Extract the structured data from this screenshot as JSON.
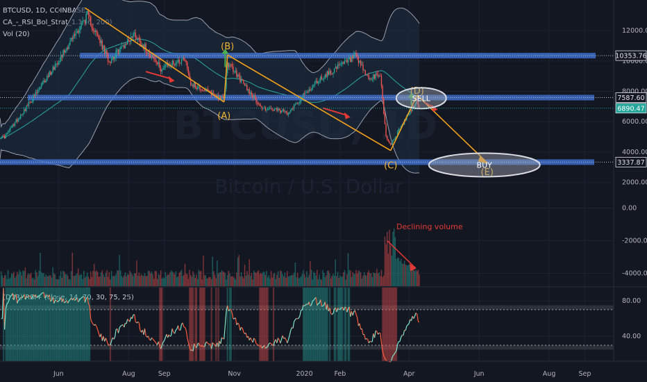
{
  "header": {
    "symbol_line": "BTCUSD, 1D, COINBASE",
    "indicator_line": "CA_-_RSI_Bol_Strat_1.1 (6, 200)",
    "volume_line": "Vol (20)",
    "rsi_line": "(D7R) RSI+ (close, 14, 70, 30, 75, 25)"
  },
  "watermark": {
    "symbol": "BTCUSD, 1D",
    "description": "Bitcoin / U.S. Dollar"
  },
  "colors": {
    "background": "#131722",
    "grid": "#1e2230",
    "up_candle": "#26a69a",
    "down_candle": "#ef5350",
    "level_band": "#3e6cc9",
    "trend_line": "#f7a21b",
    "wave_label": "#f7b733",
    "arrow_red": "#e53935",
    "arrow_green": "#4caf50",
    "rsi_up": "#7fe8cf",
    "rsi_down": "#ff5b3a",
    "bollinger": "#9aa0b0"
  },
  "chart_data": {
    "type": "candlestick",
    "price_axis": {
      "ticks": [
        "12000.00",
        "10000.00",
        "8000.00",
        "6000.00",
        "4000.00",
        "2000.00"
      ],
      "tick_values": [
        12000,
        10000,
        8000,
        6000,
        4000,
        2000
      ],
      "range": [
        -100,
        13400
      ]
    },
    "volume_axis": {
      "ticks": [
        "0.00",
        "-2000.00",
        "-4000.00"
      ],
      "tick_values": [
        0,
        -2000,
        -4000
      ]
    },
    "rsi_axis": {
      "ticks": [
        "80.00",
        "40.00"
      ],
      "tick_values": [
        80,
        40
      ],
      "range": [
        12,
        95
      ],
      "overbought": 70,
      "oversold": 30,
      "upper_band": 75,
      "lower_band": 25
    },
    "time_axis": [
      "Jun",
      "Aug",
      "Sep",
      "Nov",
      "2020",
      "Feb",
      "Apr",
      "Jun",
      "Aug",
      "Sep"
    ],
    "price_key_points": [
      {
        "date": "2019-04-15",
        "price": 5000
      },
      {
        "date": "2019-05-14",
        "price": 8000
      },
      {
        "date": "2019-06-26",
        "price": 13000
      },
      {
        "date": "2019-07-15",
        "price": 10000
      },
      {
        "date": "2019-08-06",
        "price": 11800
      },
      {
        "date": "2019-08-29",
        "price": 9500
      },
      {
        "date": "2019-09-19",
        "price": 10200
      },
      {
        "date": "2019-09-24",
        "price": 8500
      },
      {
        "date": "2019-10-23",
        "price": 7500
      },
      {
        "date": "2019-10-26",
        "price": 9900
      },
      {
        "date": "2019-11-25",
        "price": 6900
      },
      {
        "date": "2019-12-17",
        "price": 6600
      },
      {
        "date": "2020-01-14",
        "price": 8800
      },
      {
        "date": "2020-02-14",
        "price": 10300
      },
      {
        "date": "2020-02-26",
        "price": 8800
      },
      {
        "date": "2020-03-07",
        "price": 9100
      },
      {
        "date": "2020-03-12",
        "price": 5000
      },
      {
        "date": "2020-03-16",
        "price": 4500
      },
      {
        "date": "2020-04-07",
        "price": 7300
      },
      {
        "date": "2020-04-10",
        "price": 6890
      }
    ],
    "horizontal_levels": [
      {
        "label": "10353.76",
        "price": 10353.76
      },
      {
        "label": "7587.60",
        "price": 7587.6
      },
      {
        "label": "3337.87",
        "price": 3337.87
      }
    ],
    "last_price": {
      "label": "6890.47",
      "price": 6890.47
    },
    "wave_points": [
      {
        "label": "(B)",
        "date": "2019-10-26",
        "price": 10400
      },
      {
        "label": "(A)",
        "date": "2019-10-23",
        "price": 7300
      },
      {
        "label": "(C)",
        "date": "2020-03-16",
        "price": 4100
      },
      {
        "label": "(D)",
        "date": "2020-04-08",
        "price": 7750
      },
      {
        "label": "(E)",
        "date": "2020-06-08",
        "price": 3300
      }
    ],
    "annotations": [
      {
        "text": "SELL",
        "date": "2020-04-08",
        "price": 7550
      },
      {
        "text": "BUY",
        "date": "2020-06-08",
        "price": 3150
      },
      {
        "text": "Declining volume",
        "date": "2020-03-21",
        "volume": -1300
      }
    ]
  }
}
